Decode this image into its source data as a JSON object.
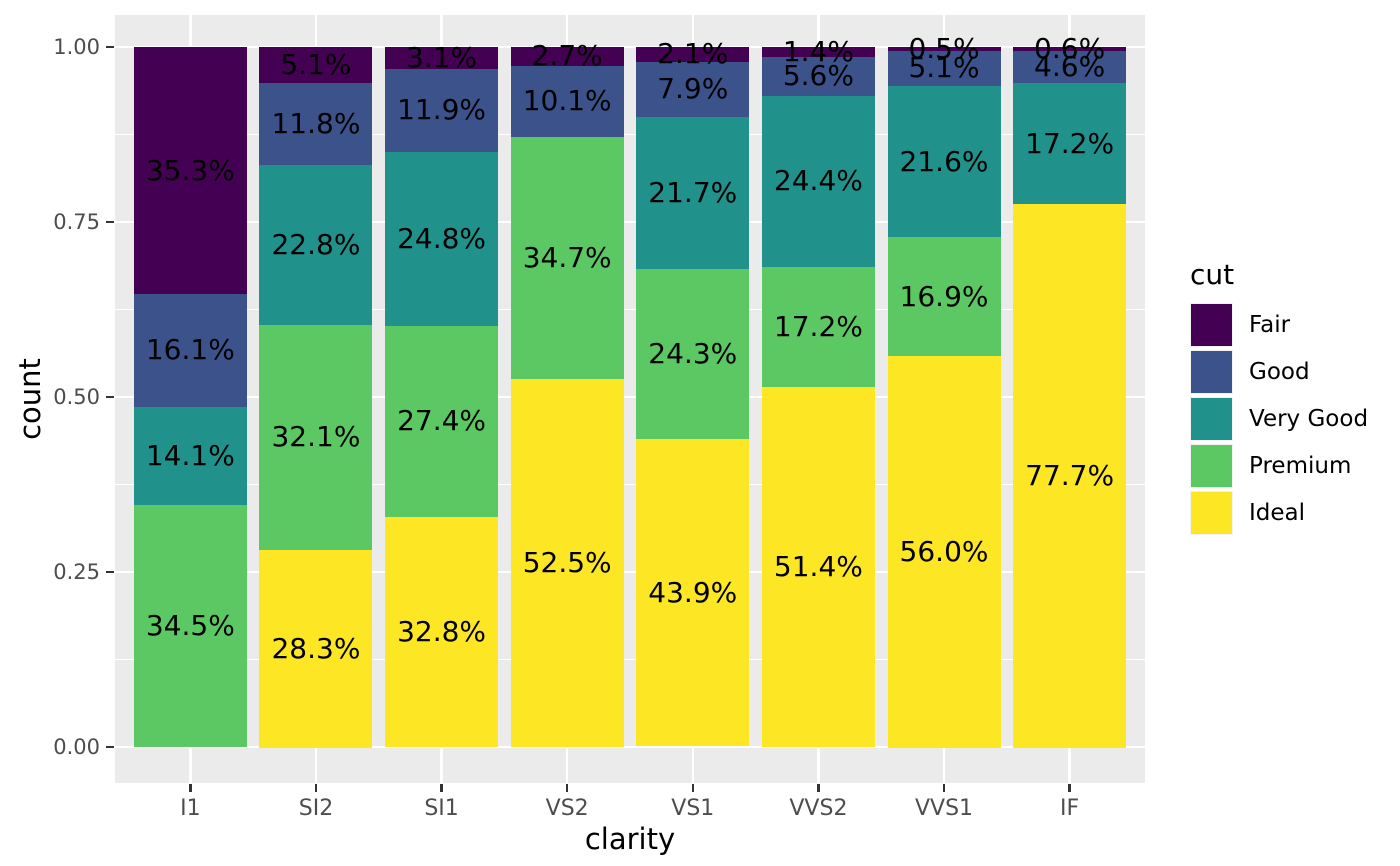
{
  "figure": {
    "background": "#ffffff",
    "panel_background": "#ebebeb",
    "grid_color": "#ffffff",
    "tick_mark_color": "#333333",
    "tick_label_color": "#4d4d4d",
    "text_color": "#000000"
  },
  "chart_data": {
    "type": "bar",
    "subtype": "stacked-fill-proportional",
    "title": "",
    "xlabel": "clarity",
    "ylabel": "count",
    "ylim": [
      0,
      1
    ],
    "grid": "major+minor horizontal, major vertical",
    "legend_position": "right",
    "legend_title": "cut",
    "y_tick_labels": [
      "1.00",
      "0.75",
      "0.50",
      "0.25",
      "0.00"
    ],
    "y_tick_values": [
      1.0,
      0.75,
      0.5,
      0.25,
      0.0
    ],
    "y_minor_values": [
      0.875,
      0.625,
      0.375,
      0.125
    ],
    "categories": [
      "I1",
      "SI2",
      "SI1",
      "VS2",
      "VS1",
      "VVS2",
      "VVS1",
      "IF"
    ],
    "series": [
      {
        "name": "Fair",
        "color": "#440154",
        "values": [
          35.3,
          5.1,
          3.1,
          2.7,
          2.1,
          1.4,
          0.5,
          0.6
        ],
        "labels": [
          "35.3%",
          "5.1%",
          "3.1%",
          "2.7%",
          "2.1%",
          "1.4%",
          "0.5%",
          "0.6%"
        ]
      },
      {
        "name": "Good",
        "color": "#3b528b",
        "values": [
          16.1,
          11.8,
          11.9,
          10.1,
          7.9,
          5.6,
          5.1,
          4.6
        ],
        "labels": [
          "16.1%",
          "11.8%",
          "11.9%",
          "10.1%",
          "7.9%",
          "5.6%",
          "5.1%",
          "4.6%"
        ]
      },
      {
        "name": "Very Good",
        "color": "#21918c",
        "values": [
          14.1,
          22.8,
          24.8,
          0,
          21.7,
          24.4,
          21.6,
          17.2
        ],
        "labels": [
          "14.1%",
          "22.8%",
          "24.8%",
          null,
          "21.7%",
          "24.4%",
          "21.6%",
          "17.2%"
        ]
      },
      {
        "name": "Premium",
        "color": "#5cc863",
        "values": [
          34.5,
          32.1,
          27.4,
          34.7,
          24.3,
          17.2,
          16.9,
          0
        ],
        "labels": [
          "34.5%",
          "32.1%",
          "27.4%",
          "34.7%",
          "24.3%",
          "17.2%",
          "16.9%",
          null
        ]
      },
      {
        "name": "Ideal",
        "color": "#fde725",
        "values": [
          0,
          28.3,
          32.8,
          52.5,
          43.9,
          51.4,
          56.0,
          77.7
        ],
        "labels": [
          null,
          "28.3%",
          "32.8%",
          "52.5%",
          "43.9%",
          "51.4%",
          "56.0%",
          "77.7%"
        ]
      }
    ]
  }
}
